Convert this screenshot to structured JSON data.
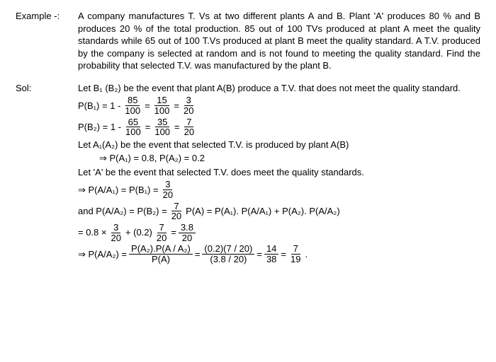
{
  "example": {
    "label": "Example -:",
    "text": "A company manufactures T. Vs at two different plants A and B.  Plant 'A' produces 80 % and B produces 20 % of the total production.  85 out of 100 TVs produced at plant A meet the quality standards while 65 out of 100 T.Vs produced at plant B meet the quality standard. A T.V. produced by the company is selected at random and is not found to meeting the quality standard.  Find the probability that selected T.V. was manufactured by the plant B."
  },
  "sol": {
    "label": "Sol:",
    "line1": "Let B₁ (B₂) be the event that plant A(B)  produce a T.V. that does not meet the quality standard.",
    "pb1": {
      "lhs": "P(B₁) = 1 -",
      "f1n": "85",
      "f1d": "100",
      "eq1": "=",
      "f2n": "15",
      "f2d": "100",
      "eq2": "=",
      "f3n": "3",
      "f3d": "20"
    },
    "pb2": {
      "lhs": "P(B₂)  = 1 -",
      "f1n": "65",
      "f1d": "100",
      "eq1": "=",
      "f2n": "35",
      "f2d": "100",
      "eq2": "=",
      "f3n": "7",
      "f3d": "20"
    },
    "line2a": "Let A₁(A₂) be the event that selected T.V. is produced by plant A(B)",
    "line2b": "⇒  P(A₁)  = 0.8, P(A₂)  = 0.2",
    "line3": "Let 'A' be the event that selected T.V. does meet the quality standards.",
    "paa1": {
      "lhs": "⇒ P(A/A₁)  = P(B₁)  =",
      "fn": "3",
      "fd": "20"
    },
    "paa2": {
      "lhs": "and P(A/A₂) = P(B₂)  =",
      "fn": "7",
      "fd": "20",
      "rhs": "P(A)  = P(A₁). P(A/A₁)  + P(A₂). P(A/A₂)"
    },
    "calc": {
      "p1": "= 0.8 ×",
      "f1n": "3",
      "f1d": "20",
      "p2": "+ (0.2)",
      "f2n": "7",
      "f2d": "20",
      "p3": "=",
      "f3n": "3.8",
      "f3d": "20"
    },
    "final": {
      "lhs": "⇒  P(A/A₂)  =",
      "f1n": "P(A₂).P(A / A₂)",
      "f1d": "P(A)",
      "eq1": "=",
      "f2n": "(0.2)(7 / 20)",
      "f2d": "(3.8 / 20)",
      "eq2": "=",
      "f3n": "14",
      "f3d": "38",
      "eq3": "=",
      "f4n": "7",
      "f4d": "19",
      "dot": "."
    }
  }
}
